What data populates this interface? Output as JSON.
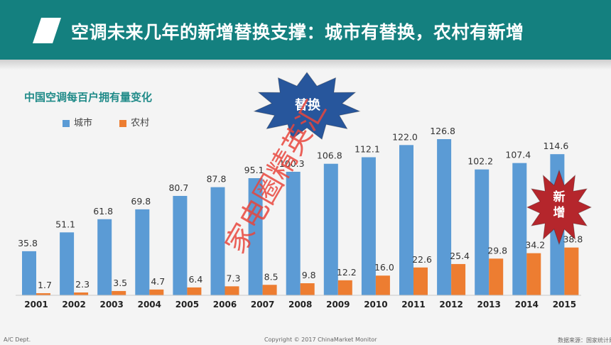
{
  "slide": {
    "title": "空调未来几年的新增替换支撑：城市有替换，农村有新增",
    "header_color": "#14807f",
    "accent_color": "#ffffff"
  },
  "chart_data": {
    "type": "bar",
    "title": "中国空调每百户拥有量变化",
    "categories": [
      "2001",
      "2002",
      "2003",
      "2004",
      "2005",
      "2006",
      "2007",
      "2008",
      "2009",
      "2010",
      "2011",
      "2012",
      "2013",
      "2014",
      "2015"
    ],
    "series": [
      {
        "name": "城市",
        "color": "#5b9bd5",
        "values": [
          35.8,
          51.1,
          61.8,
          69.8,
          80.7,
          87.8,
          95.1,
          100.3,
          106.8,
          112.1,
          122.0,
          126.8,
          102.2,
          107.4,
          114.6
        ]
      },
      {
        "name": "农村",
        "color": "#ed7d31",
        "values": [
          1.7,
          2.3,
          3.5,
          4.7,
          6.4,
          7.3,
          8.5,
          9.8,
          12.2,
          16.0,
          22.6,
          25.4,
          29.8,
          34.2,
          38.8
        ]
      }
    ],
    "ylim": [
      0,
      135
    ],
    "grid": false,
    "legend_position": "top-left",
    "data_labels": true
  },
  "callouts": {
    "replace_label": "替换",
    "replace_color": "#27569c",
    "new_label": "新增",
    "new_color": "#b5262c"
  },
  "watermark": {
    "text": "家电圈精英汇",
    "color": "#e8453c"
  },
  "footer": {
    "left": "A/C Dept.",
    "center": "Copyright © 2017 ChinaMarket Monitor",
    "right": "数据来源：国家统计局"
  }
}
